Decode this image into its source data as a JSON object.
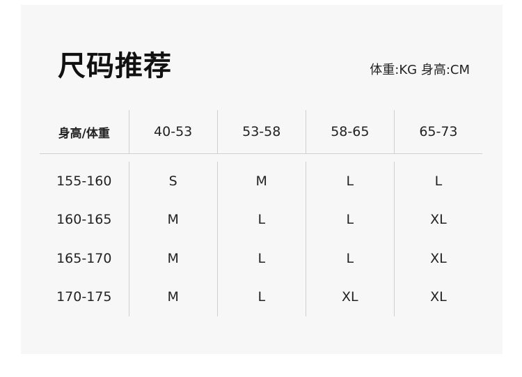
{
  "title": "尺码推荐",
  "units": "体重:KG 身高:CM",
  "table": {
    "headers": [
      "身高/体重",
      "40-53",
      "53-58",
      "58-65",
      "65-73"
    ],
    "rows": [
      [
        "155-160",
        "S",
        "M",
        "L",
        "L"
      ],
      [
        "160-165",
        "M",
        "L",
        "L",
        "XL"
      ],
      [
        "165-170",
        "M",
        "L",
        "L",
        "XL"
      ],
      [
        "170-175",
        "M",
        "L",
        "XL",
        "XL"
      ]
    ]
  }
}
